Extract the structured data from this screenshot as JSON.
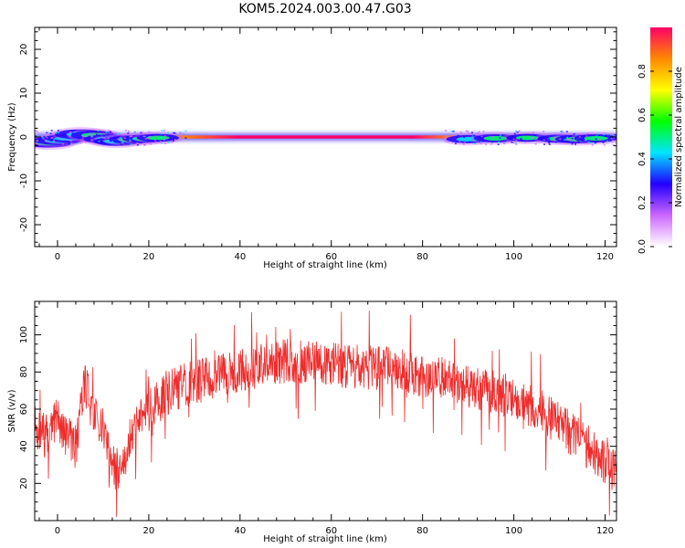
{
  "title": "KOM5.2024.003.00.47.G03",
  "chart_data": [
    {
      "type": "heatmap",
      "xlabel": "Height of straight line (km)",
      "ylabel": "Frequency (Hz)",
      "xlim": [
        -5,
        122.5
      ],
      "ylim": [
        -25,
        25
      ],
      "xticks": [
        0,
        20,
        40,
        60,
        80,
        100,
        120
      ],
      "yticks": [
        -20,
        -10,
        0,
        10,
        20
      ],
      "ytick_labels": [
        "-20",
        "-10",
        "0",
        "10",
        "20"
      ],
      "colorbar": {
        "label": "Normalized spectral amplitude",
        "range": [
          0,
          1
        ],
        "ticks": [
          0.0,
          0.2,
          0.4,
          0.6,
          0.8
        ],
        "tick_labels": [
          "0.0",
          "0.2",
          "0.4",
          "0.6",
          "0.8"
        ],
        "colormap": [
          "#ffffff",
          "#cc66ff",
          "#2200ff",
          "#00e5ff",
          "#00ff00",
          "#ffff00",
          "#ff8800",
          "#ff0066"
        ]
      },
      "ridge": {
        "freq": 0,
        "core_x_range": [
          28,
          85
        ]
      },
      "blobs": [
        {
          "x": -3,
          "y": -1.0,
          "w": 1.2,
          "amp": 0.3
        },
        {
          "x": -2,
          "y": -1.3,
          "w": 1.4,
          "amp": 0.4
        },
        {
          "x": 0,
          "y": -0.8,
          "w": 1.2,
          "amp": 0.3
        },
        {
          "x": 2,
          "y": -0.3,
          "w": 1.0,
          "amp": 0.35
        },
        {
          "x": 5,
          "y": 0.6,
          "w": 1.5,
          "amp": 0.3
        },
        {
          "x": 8,
          "y": 0.4,
          "w": 1.2,
          "amp": 0.4
        },
        {
          "x": 11,
          "y": -0.5,
          "w": 1.3,
          "amp": 0.3
        },
        {
          "x": 13,
          "y": -1.0,
          "w": 1.2,
          "amp": 0.35
        },
        {
          "x": 16,
          "y": -0.6,
          "w": 1.1,
          "amp": 0.4
        },
        {
          "x": 19,
          "y": -0.4,
          "w": 1.0,
          "amp": 0.4
        },
        {
          "x": 22,
          "y": -0.2,
          "w": 0.9,
          "amp": 0.45
        },
        {
          "x": 90,
          "y": -0.5,
          "w": 1.0,
          "amp": 0.35
        },
        {
          "x": 96,
          "y": -0.3,
          "w": 1.0,
          "amp": 0.4
        },
        {
          "x": 103,
          "y": -0.2,
          "w": 0.9,
          "amp": 0.4
        },
        {
          "x": 110,
          "y": -0.4,
          "w": 1.0,
          "amp": 0.45
        },
        {
          "x": 114,
          "y": -0.5,
          "w": 1.1,
          "amp": 0.45
        },
        {
          "x": 118,
          "y": -0.3,
          "w": 1.0,
          "amp": 0.4
        }
      ]
    },
    {
      "type": "line",
      "xlabel": "Height of straight line (km)",
      "ylabel": "SNR (v/v)",
      "xlim": [
        -5,
        122.5
      ],
      "ylim": [
        0,
        118
      ],
      "xticks": [
        0,
        20,
        40,
        60,
        80,
        100,
        120
      ],
      "yticks": [
        20,
        40,
        60,
        80,
        100
      ],
      "color": "#ef2b2b",
      "series": [
        {
          "x": [
            -5,
            -2,
            0,
            2,
            4,
            6,
            8,
            10,
            12,
            14,
            16,
            20,
            25,
            30,
            35,
            40,
            45,
            50,
            55,
            60,
            65,
            70,
            75,
            80,
            85,
            90,
            95,
            100,
            105,
            110,
            115,
            120,
            122.5
          ],
          "values": [
            50,
            45,
            55,
            45,
            40,
            75,
            55,
            50,
            30,
            25,
            45,
            60,
            70,
            75,
            78,
            80,
            84,
            86,
            85,
            84,
            83,
            82,
            82,
            78,
            76,
            72,
            70,
            66,
            60,
            52,
            42,
            32,
            27
          ]
        }
      ],
      "noise_amplitude": 12
    }
  ]
}
